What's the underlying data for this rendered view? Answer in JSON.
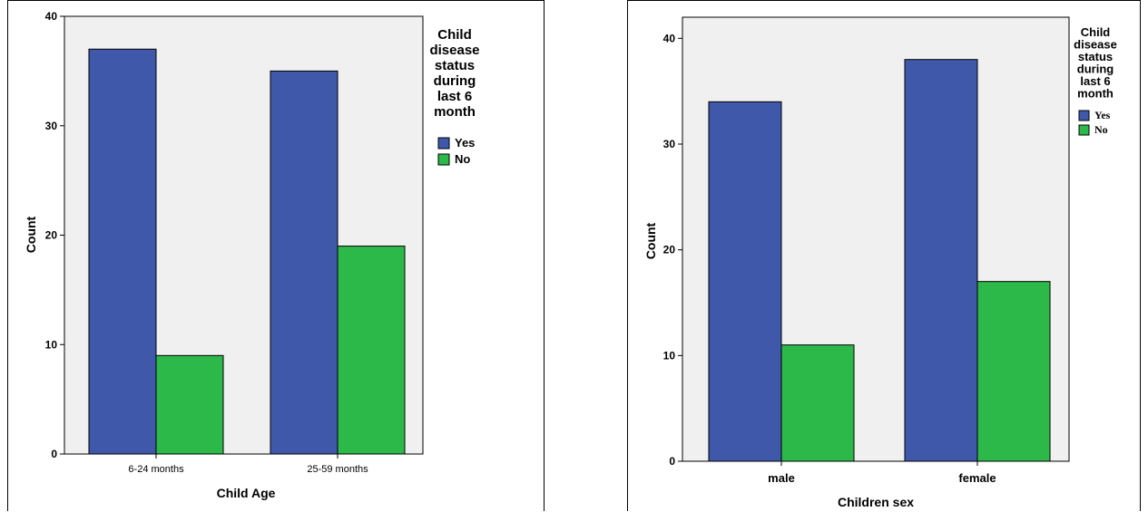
{
  "chart_data": [
    {
      "type": "bar",
      "xlabel": "Child Age",
      "ylabel": "Count",
      "categories": [
        "6-24 months",
        "25-59 months"
      ],
      "ylim": [
        0,
        40
      ],
      "yticks": [
        "0",
        "10",
        "20",
        "30",
        "40"
      ],
      "legend_title_lines": [
        "Child",
        "disease",
        "status",
        "during",
        "last 6",
        "month"
      ],
      "legend_position": "right",
      "series": [
        {
          "name": "Yes",
          "color": "#4058aa",
          "values": [
            37,
            35
          ]
        },
        {
          "name": "No",
          "color": "#2db84a",
          "values": [
            9,
            19
          ]
        }
      ]
    },
    {
      "type": "bar",
      "xlabel": "Children sex",
      "ylabel": "Count",
      "categories": [
        "male",
        "female"
      ],
      "ylim": [
        0,
        42
      ],
      "yticks": [
        "0",
        "10",
        "20",
        "30",
        "40"
      ],
      "legend_title_lines": [
        "Child",
        "disease",
        "status",
        "during",
        "last 6",
        "month"
      ],
      "legend_position": "right",
      "series": [
        {
          "name": "Yes",
          "color": "#4058aa",
          "values": [
            34,
            38
          ]
        },
        {
          "name": "No",
          "color": "#2db84a",
          "values": [
            11,
            17
          ]
        }
      ]
    }
  ],
  "colors": {
    "plot_background": "#f0f0f0"
  }
}
